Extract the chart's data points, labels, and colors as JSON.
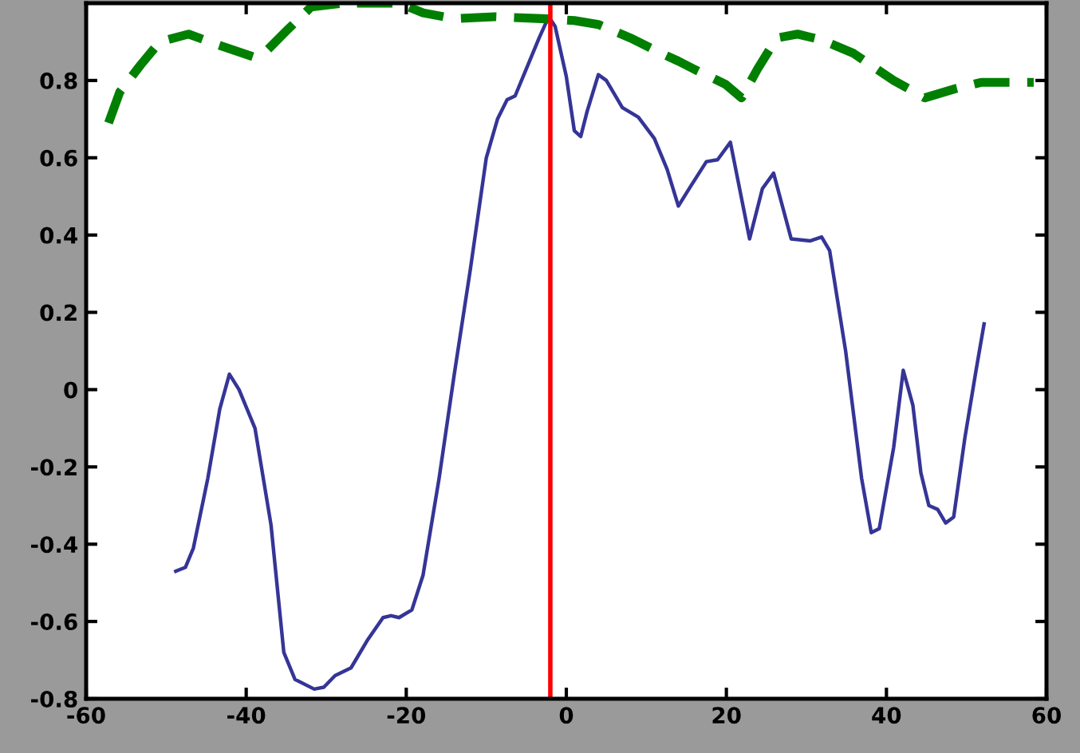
{
  "chart_data": {
    "type": "line",
    "xlim": [
      -60,
      60
    ],
    "ylim": [
      -0.8,
      1.0
    ],
    "xticks": [
      -60,
      -40,
      -20,
      0,
      20,
      40,
      60
    ],
    "yticks": [
      -0.8,
      -0.6,
      -0.4,
      -0.2,
      0,
      0.2,
      0.4,
      0.6,
      0.8
    ],
    "grid": false,
    "legend": false,
    "series": [
      {
        "color": "#353597",
        "line_style": "solid",
        "x": [
          -48.8,
          -47.6,
          -46.6,
          -44.8,
          -43.3,
          -42.1,
          -40.9,
          -38.9,
          -36.9,
          -35.3,
          -33.9,
          -31.5,
          -30.3,
          -28.9,
          -26.9,
          -24.9,
          -22.9,
          -21.9,
          -20.9,
          -19.3,
          -17.9,
          -15.9,
          -14.0,
          -12.0,
          -10.0,
          -8.6,
          -7.4,
          -6.4,
          -5.0,
          -3.4,
          -2.2,
          -1.4,
          0,
          1.0,
          1.8,
          2.6,
          4.0,
          5.0,
          7.0,
          9.0,
          11.0,
          12.6,
          14.0,
          15.5,
          17.5,
          18.9,
          20.5,
          22.9,
          24.5,
          25.9,
          28.1,
          30.5,
          31.9,
          32.9,
          34.9,
          36.9,
          38.1,
          39.1,
          40.9,
          42.1,
          43.3,
          44.3,
          45.3,
          46.4,
          47.4,
          48.4,
          49.8,
          51.2,
          52.2
        ],
        "values": [
          -0.47,
          -0.46,
          -0.41,
          -0.23,
          -0.05,
          0.04,
          0.0,
          -0.1,
          -0.35,
          -0.68,
          -0.75,
          -0.775,
          -0.77,
          -0.74,
          -0.72,
          -0.65,
          -0.59,
          -0.585,
          -0.59,
          -0.57,
          -0.48,
          -0.23,
          0.04,
          0.31,
          0.6,
          0.7,
          0.75,
          0.76,
          0.83,
          0.91,
          0.965,
          0.94,
          0.81,
          0.67,
          0.655,
          0.72,
          0.815,
          0.8,
          0.73,
          0.705,
          0.65,
          0.57,
          0.475,
          0.525,
          0.59,
          0.595,
          0.64,
          0.39,
          0.52,
          0.56,
          0.39,
          0.385,
          0.395,
          0.36,
          0.1,
          -0.23,
          -0.37,
          -0.36,
          -0.15,
          0.05,
          -0.04,
          -0.215,
          -0.3,
          -0.31,
          -0.345,
          -0.33,
          -0.125,
          0.05,
          0.17
        ]
      },
      {
        "color": "#007f00",
        "line_style": "dashed",
        "x": [
          -57.2,
          -55.8,
          -53.2,
          -50.8,
          -47.2,
          -43.9,
          -38.9,
          -37.3,
          -34.9,
          -31.9,
          -27.9,
          -23.9,
          -20.9,
          -17.9,
          -14.0,
          -9.0,
          -3.0,
          1.0,
          4.0,
          8.0,
          11.9,
          14.0,
          15.9,
          19.9,
          21.9,
          23.9,
          26.3,
          28.9,
          31.9,
          35.9,
          40.9,
          44.8,
          48.8,
          51.8,
          54.8,
          58.4
        ],
        "values": [
          0.69,
          0.77,
          0.84,
          0.9,
          0.92,
          0.895,
          0.86,
          0.88,
          0.93,
          0.99,
          1.0,
          1.0,
          1.0,
          0.975,
          0.96,
          0.965,
          0.96,
          0.955,
          0.945,
          0.91,
          0.87,
          0.85,
          0.83,
          0.79,
          0.755,
          0.83,
          0.91,
          0.92,
          0.905,
          0.87,
          0.8,
          0.755,
          0.78,
          0.795,
          0.795,
          0.795
        ]
      }
    ],
    "ref_lines": [
      {
        "axis": "x",
        "value": -2,
        "color": "#ff0000",
        "line_style": "solid"
      }
    ]
  }
}
